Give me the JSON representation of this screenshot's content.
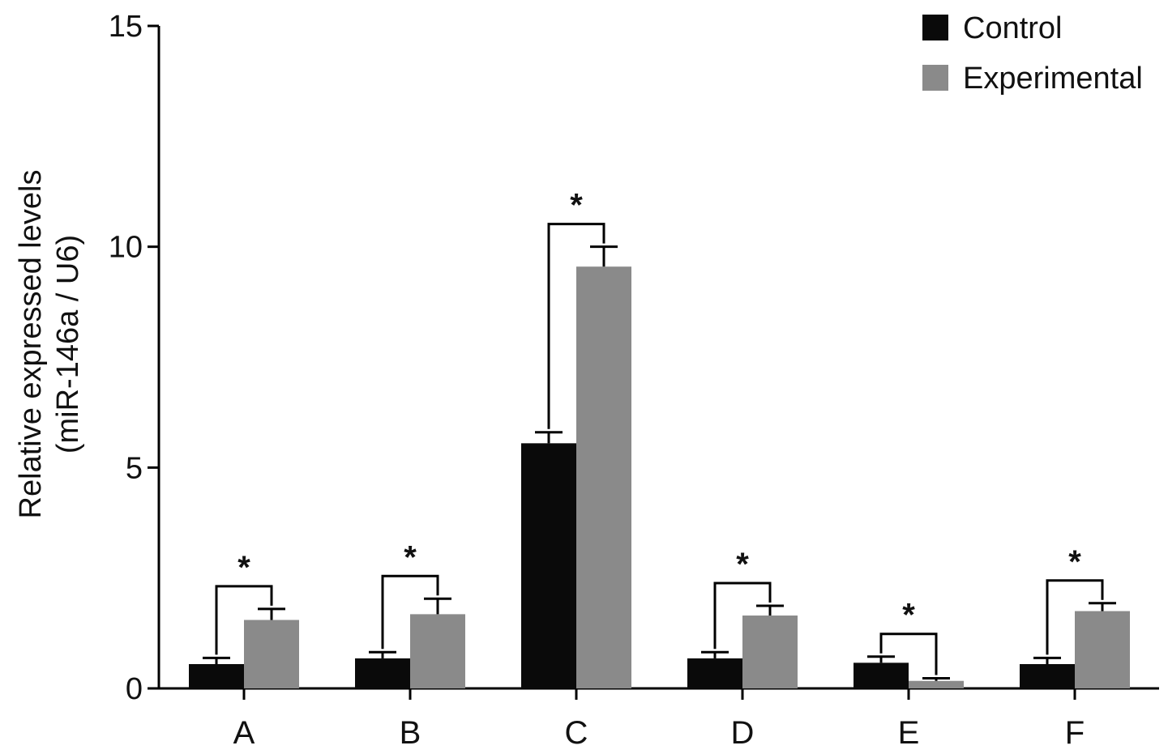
{
  "chart_data": {
    "type": "bar",
    "categories": [
      "A",
      "B",
      "C",
      "D",
      "E",
      "F"
    ],
    "series": [
      {
        "name": "Control",
        "color": "#0a0a0a",
        "values": [
          0.55,
          0.68,
          5.55,
          0.68,
          0.58,
          0.55
        ],
        "errors": [
          0.14,
          0.14,
          0.25,
          0.14,
          0.14,
          0.14
        ]
      },
      {
        "name": "Experimental",
        "color": "#8a8a8a",
        "values": [
          1.55,
          1.68,
          9.55,
          1.65,
          0.17,
          1.75
        ],
        "errors": [
          0.25,
          0.35,
          0.45,
          0.22,
          0.06,
          0.18
        ]
      }
    ],
    "significance": [
      {
        "category": "A",
        "label": "*"
      },
      {
        "category": "B",
        "label": "*"
      },
      {
        "category": "C",
        "label": "*"
      },
      {
        "category": "D",
        "label": "*"
      },
      {
        "category": "E",
        "label": "*"
      },
      {
        "category": "F",
        "label": "*"
      }
    ],
    "ylim": [
      0,
      15
    ],
    "yticks": [
      0,
      5,
      10,
      15
    ],
    "ylabel_line1": "Relative expressed levels",
    "ylabel_line2": "(miR-146a / U6)",
    "xlabel": "",
    "title": "",
    "grid": false,
    "legend_position": "top-right"
  }
}
